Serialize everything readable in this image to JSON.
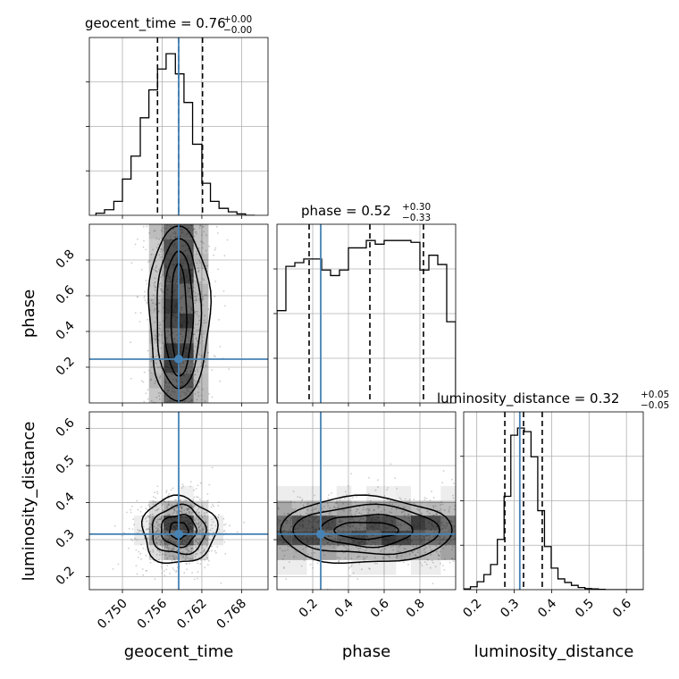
{
  "chart_data": {
    "type": "corner",
    "parameters": [
      {
        "name": "geocent_time",
        "axis_label": "geocent_time",
        "title": {
          "base": "geocent_time = 0.76",
          "plus": "+0.00",
          "minus": "−0.00"
        },
        "range": [
          0.745,
          0.772
        ],
        "ticks": [
          0.75,
          0.756,
          0.762,
          0.768
        ],
        "tick_labels": [
          "0.750",
          "0.756",
          "0.762",
          "0.768"
        ],
        "truth": 0.7585,
        "quantiles": [
          0.7553,
          0.7585,
          0.7621
        ],
        "hist_edges": [
          0.746,
          0.7473,
          0.7487,
          0.75,
          0.7513,
          0.7527,
          0.754,
          0.7553,
          0.7566,
          0.758,
          0.7593,
          0.7606,
          0.762,
          0.7633,
          0.7646,
          0.766,
          0.7673,
          0.7686,
          0.77
        ],
        "hist_counts": [
          3,
          8,
          20,
          52,
          85,
          140,
          180,
          210,
          232,
          203,
          162,
          102,
          46,
          20,
          10,
          5,
          2,
          0
        ]
      },
      {
        "name": "phase",
        "axis_label": "phase",
        "title": {
          "base": "phase = 0.52",
          "plus": "+0.30",
          "minus": "−0.33"
        },
        "range": [
          0.0,
          1.0
        ],
        "ticks": [
          0.2,
          0.4,
          0.6,
          0.8
        ],
        "tick_labels": [
          "0.2",
          "0.4",
          "0.6",
          "0.8"
        ],
        "truth": 0.245,
        "quantiles": [
          0.18,
          0.52,
          0.82
        ],
        "hist_edges": [
          0.0,
          0.05,
          0.1,
          0.15,
          0.2,
          0.25,
          0.3,
          0.35,
          0.4,
          0.45,
          0.5,
          0.55,
          0.6,
          0.65,
          0.7,
          0.75,
          0.8,
          0.85,
          0.9,
          0.95,
          1.0
        ],
        "hist_counts": [
          500,
          740,
          760,
          780,
          780,
          720,
          690,
          720,
          840,
          840,
          880,
          860,
          880,
          880,
          880,
          870,
          720,
          800,
          750,
          440
        ]
      },
      {
        "name": "luminosity_distance",
        "axis_label": "luminosity_distance",
        "title": {
          "base": "luminosity_distance = 0.32",
          "plus": "+0.05",
          "minus": "−0.05"
        },
        "range": [
          0.165,
          0.645
        ],
        "ticks": [
          0.2,
          0.3,
          0.4,
          0.5,
          0.6
        ],
        "tick_labels": [
          "0.2",
          "0.3",
          "0.4",
          "0.5",
          "0.6"
        ],
        "truth": 0.315,
        "quantiles": [
          0.275,
          0.325,
          0.375
        ],
        "hist_edges": [
          0.165,
          0.183,
          0.201,
          0.219,
          0.237,
          0.255,
          0.273,
          0.291,
          0.309,
          0.327,
          0.345,
          0.363,
          0.381,
          0.399,
          0.417,
          0.435,
          0.453,
          0.471,
          0.489,
          0.507,
          0.525,
          0.543,
          0.561,
          0.579,
          0.597,
          0.615,
          0.645
        ],
        "hist_counts": [
          2,
          8,
          22,
          42,
          70,
          140,
          260,
          430,
          450,
          440,
          370,
          220,
          120,
          60,
          30,
          20,
          12,
          6,
          3,
          2,
          1,
          0,
          0,
          0,
          0,
          0
        ]
      }
    ],
    "pairs": [
      {
        "x": "geocent_time",
        "y": "phase",
        "kind": "hist2d-contour"
      },
      {
        "x": "geocent_time",
        "y": "luminosity_distance",
        "kind": "hist2d-contour"
      },
      {
        "x": "phase",
        "y": "luminosity_distance",
        "kind": "hist2d-contour"
      }
    ],
    "colors": {
      "truth": "#4682b4",
      "hist": "#000000",
      "grid": "#b0b0b0",
      "density": "#000000",
      "scatter": "#909090"
    },
    "grid": true
  }
}
